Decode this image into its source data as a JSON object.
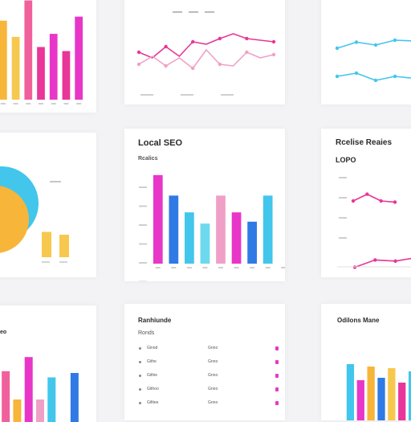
{
  "colors": {
    "pink": "#e8369a",
    "magenta": "#e836c8",
    "blue": "#2f7ae5",
    "cyan": "#42c6ec",
    "light_pink": "#f0a0c6",
    "orange": "#f7b53a",
    "yellow": "#f7c84e",
    "light_cyan": "#6dd9ee"
  },
  "cards": {
    "top_middle": {},
    "top_right": {},
    "mid_middle": {
      "title": "Local SEO",
      "subtitle": "Rcalics"
    },
    "mid_right": {
      "title": "Rcelise Reaies",
      "subtitle": "LOPO"
    },
    "bottom_left": {
      "title": "eo"
    },
    "bottom_middle": {
      "title": "Ranhiunde",
      "subtitle": "Ronds"
    },
    "bottom_right": {
      "title": "Odilons Mane"
    }
  },
  "chart_data": [
    {
      "id": "top_left",
      "type": "bar",
      "categories": [
        "",
        "",
        "",
        "",
        "",
        "",
        ""
      ],
      "values": [
        78,
        62,
        98,
        52,
        65,
        48,
        82
      ],
      "colors": [
        "#f7b53a",
        "#f7c84e",
        "#f0609c",
        "#e8369a",
        "#e836c8",
        "#e8369a",
        "#e836c8"
      ],
      "ylim": [
        0,
        100
      ]
    },
    {
      "id": "top_middle",
      "type": "line",
      "series": [
        {
          "color": "#e8369a",
          "values": [
            45,
            38,
            52,
            40,
            58,
            55,
            62,
            68,
            62,
            60,
            58
          ]
        },
        {
          "color": "#f0a0c6",
          "values": [
            30,
            40,
            28,
            38,
            25,
            48,
            30,
            28,
            45,
            38,
            42
          ]
        }
      ],
      "ylim": [
        0,
        100
      ]
    },
    {
      "id": "top_right",
      "type": "line",
      "series": [
        {
          "color": "#42c6ec",
          "values": [
            40,
            55,
            48,
            60,
            58
          ]
        },
        {
          "color": "#42c6ec",
          "values": [
            30,
            38,
            20,
            30,
            25
          ]
        }
      ],
      "ylim": [
        0,
        100
      ]
    },
    {
      "id": "mid_left",
      "type": "pie",
      "slices": [
        {
          "color": "#42c6ec",
          "value": 55
        },
        {
          "color": "#f7b53a",
          "value": 45
        }
      ],
      "bars": {
        "values": [
          45,
          40
        ],
        "color": "#f7c84e"
      },
      "labels": [
        "",
        ""
      ]
    },
    {
      "id": "mid_middle",
      "type": "bar",
      "categories": [
        "",
        "",
        "",
        "",
        "",
        "",
        "",
        "",
        ""
      ],
      "values": [
        95,
        73,
        55,
        43,
        73,
        55,
        45,
        73,
        0
      ],
      "colors": [
        "#e836c8",
        "#2f7ae5",
        "#42c6ec",
        "#6dd9ee",
        "#f0a0c6",
        "#e836c8",
        "#2f7ae5",
        "#42c6ec",
        "#ffffff"
      ],
      "ylim": [
        0,
        100
      ],
      "yticks": [
        "",
        "",
        "",
        "",
        "",
        ""
      ]
    },
    {
      "id": "mid_right",
      "type": "line",
      "series": [
        {
          "color": "#e8369a",
          "values": [
            60,
            72,
            60,
            58
          ]
        },
        {
          "color": "#e8369a",
          "values": [
            25,
            38,
            36,
            42
          ]
        }
      ],
      "ylim": [
        0,
        100
      ]
    },
    {
      "id": "bottom_left",
      "type": "bar",
      "values": [
        62,
        30,
        78,
        30,
        55,
        20,
        60
      ],
      "colors": [
        "#f0609c",
        "#f7b53a",
        "#e836c8",
        "#f0a0c6",
        "#42c6ec",
        "#ffffff",
        "#2f7ae5"
      ],
      "ylim": [
        0,
        100
      ]
    },
    {
      "id": "bottom_middle",
      "type": "table",
      "rows": [
        {
          "name": "Ginod",
          "value": "Gnno",
          "flag": "#e836c8"
        },
        {
          "name": "Githe",
          "value": "Gnno",
          "flag": "#e836c8"
        },
        {
          "name": "Githie",
          "value": "Gnno",
          "flag": "#e836c8"
        },
        {
          "name": "Githoo",
          "value": "Gnno",
          "flag": "#e836c8"
        },
        {
          "name": "Gifitee",
          "value": "Gnno",
          "flag": "#e836c8"
        }
      ]
    },
    {
      "id": "bottom_right",
      "type": "bar",
      "values": [
        75,
        55,
        72,
        58,
        70,
        52,
        66
      ],
      "colors": [
        "#42c6ec",
        "#e836c8",
        "#f7b53a",
        "#2f7ae5",
        "#f7c84e",
        "#e8369a",
        "#42c6ec"
      ],
      "ylim": [
        0,
        100
      ]
    }
  ]
}
